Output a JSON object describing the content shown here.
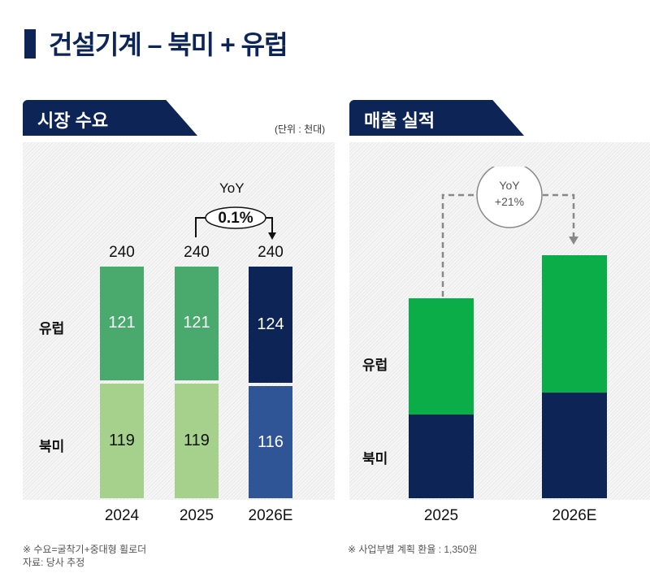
{
  "title": "건설기계 – 북미 + 유럽",
  "left": {
    "tab": "시장 수요",
    "unit": "(단위 : 천대)",
    "yoy_label": "YoY",
    "yoy_value": "0.1%",
    "row_labels": [
      "유럽",
      "북미"
    ]
  },
  "right": {
    "tab": "매출 실적",
    "yoy_label": "YoY",
    "yoy_value": "+21%",
    "row_labels": [
      "유럽",
      "북미"
    ]
  },
  "notes": {
    "left1": "※ 수요=굴착기+중대형 휠로더",
    "left2": "자료: 당사 추정",
    "right1": "※ 사업부별 계획 환율 : 1,350원"
  },
  "chart_data": [
    {
      "type": "bar",
      "stacked": true,
      "categories": [
        "2024",
        "2025",
        "2026E"
      ],
      "series": [
        {
          "name": "북미",
          "values": [
            119,
            119,
            116
          ],
          "colors": [
            "#a6d18c",
            "#a6d18c",
            "#2f5597"
          ]
        },
        {
          "name": "유럽",
          "values": [
            121,
            121,
            124
          ],
          "colors": [
            "#4aa96c",
            "#4aa96c",
            "#0c2456"
          ]
        }
      ],
      "totals": [
        "240",
        "240",
        "240"
      ],
      "labels": {
        "na": [
          "119",
          "119",
          "116"
        ],
        "eu": [
          "121",
          "121",
          "124"
        ]
      }
    },
    {
      "type": "bar",
      "stacked": true,
      "categories": [
        "2025",
        "2026E"
      ],
      "series": [
        {
          "name": "북미",
          "values": [
            103,
            130
          ],
          "color": "#0c2456"
        },
        {
          "name": "유럽",
          "values": [
            143,
            169
          ],
          "color": "#0aad48"
        }
      ]
    }
  ]
}
